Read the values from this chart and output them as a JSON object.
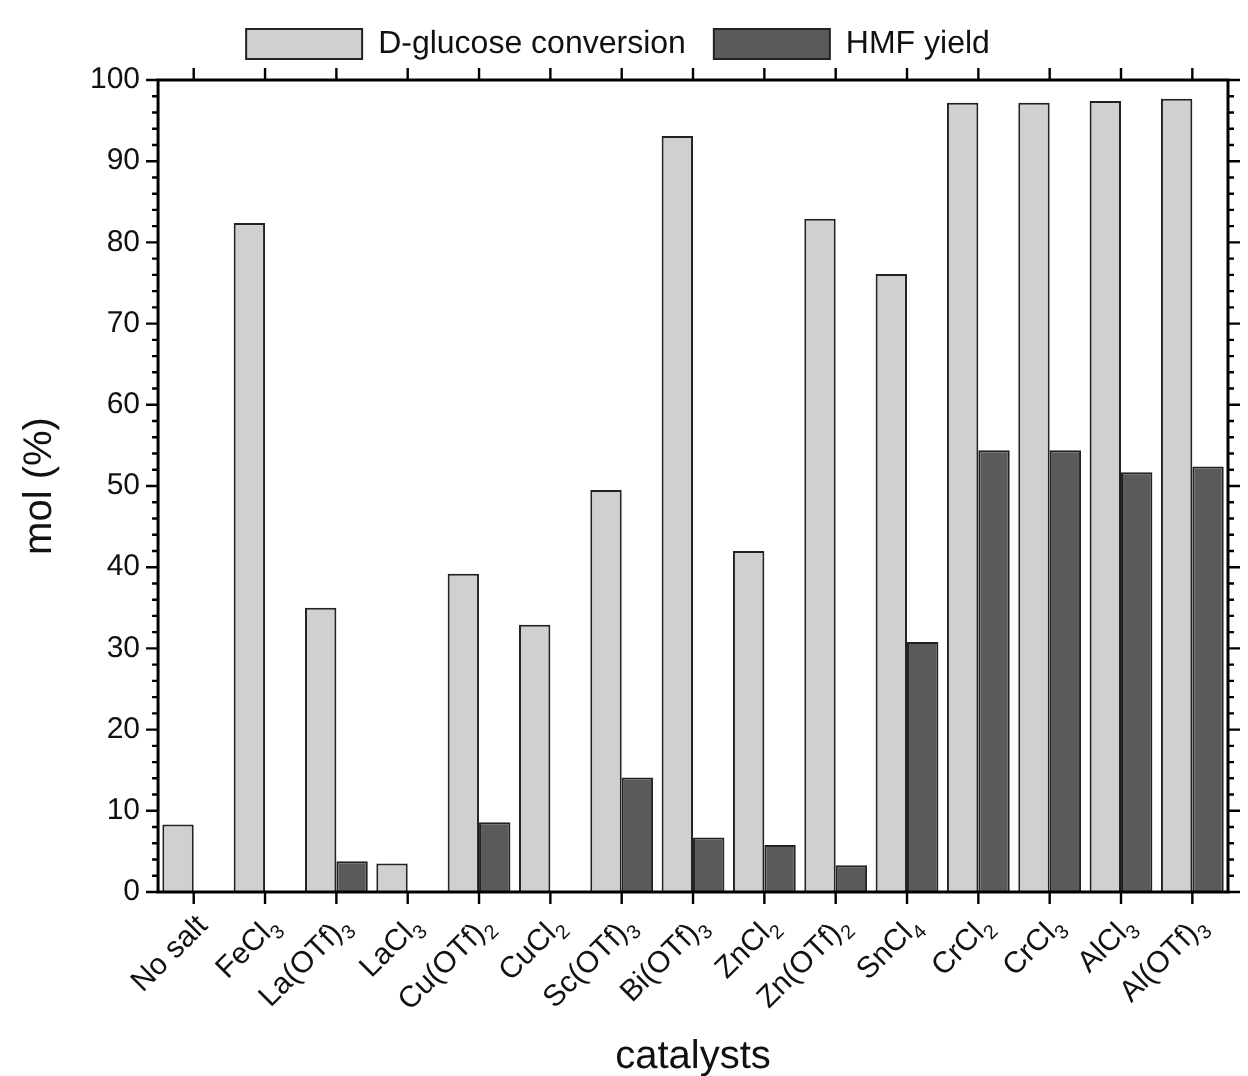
{
  "chart_data": {
    "type": "bar",
    "xlabel": "catalysts",
    "ylabel": "mol (%)",
    "categories": [
      "No salt",
      "FeCl$_{3}$",
      "La(OTf)$_{3}$",
      "LaCl$_{3}$",
      "Cu(OTf)$_{2}$",
      "CuCl$_{2}$",
      "Sc(OTf)$_{3}$",
      "Bi(OTf)$_{3}$",
      "ZnCl$_{2}$",
      "Zn(OTf)$_{2}$",
      "SnCl$_{4}$",
      "CrCl$_{2}$",
      "CrCl$_{3}$",
      "AlCl$_{3}$",
      "Al(OTf)$_{3}$"
    ],
    "series": [
      {
        "name": "D-glucose conversion",
        "color": "#d0d0d0",
        "values": [
          8.3,
          82.4,
          35,
          3.5,
          39.2,
          32.9,
          49.5,
          93.1,
          42,
          82.9,
          76.1,
          97.2,
          97.2,
          97.4,
          97.7
        ]
      },
      {
        "name": "HMF yield",
        "color": "#5a5a5a",
        "values": [
          null,
          null,
          3.8,
          null,
          8.6,
          null,
          14.1,
          6.7,
          5.8,
          3.3,
          30.8,
          54.4,
          54.4,
          51.7,
          52.4
        ]
      }
    ],
    "ylim": [
      0,
      100
    ],
    "yticks": [
      0,
      10,
      20,
      30,
      40,
      50,
      60,
      70,
      80,
      90,
      100
    ],
    "legend": "top"
  }
}
